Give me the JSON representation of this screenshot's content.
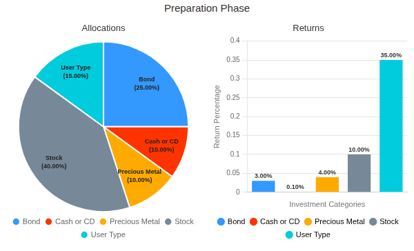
{
  "title": "Preparation Phase",
  "chart_data": [
    {
      "type": "pie",
      "title": "Allocations",
      "categories": [
        "Bond",
        "Cash or CD",
        "Precious Metal",
        "Stock",
        "User Type"
      ],
      "values": [
        25.0,
        10.0,
        10.0,
        40.0,
        15.0
      ],
      "value_labels": [
        "(25.00%)",
        "(10.00%)",
        "(10.00%)",
        "(40.00%)",
        "(15.00%)"
      ],
      "colors": [
        "#3399FF",
        "#FF3300",
        "#FFAA00",
        "#778899",
        "#00CCDD"
      ],
      "data_labels": true,
      "legend": "bottom"
    },
    {
      "type": "bar",
      "title": "Returns",
      "categories": [
        "Bond",
        "Cash or CD",
        "Precious Metal",
        "Stock",
        "User Type"
      ],
      "values": [
        0.03,
        0.001,
        0.04,
        0.1,
        0.35
      ],
      "value_labels": [
        "3.00%",
        "0.10%",
        "4.00%",
        "10.00%",
        "35.00%"
      ],
      "colors": [
        "#3399FF",
        "#FF3300",
        "#FFAA00",
        "#778899",
        "#00CCDD"
      ],
      "x_label": "Investment Categories",
      "y_label": "Return Percentage",
      "ylim": [
        0,
        0.4
      ],
      "yticks": [
        0,
        0.05,
        0.1,
        0.15,
        0.2,
        0.25,
        0.3,
        0.35,
        0.4
      ],
      "grid": true,
      "data_labels": true,
      "tick_labels": "y",
      "legend": "bottom"
    }
  ]
}
